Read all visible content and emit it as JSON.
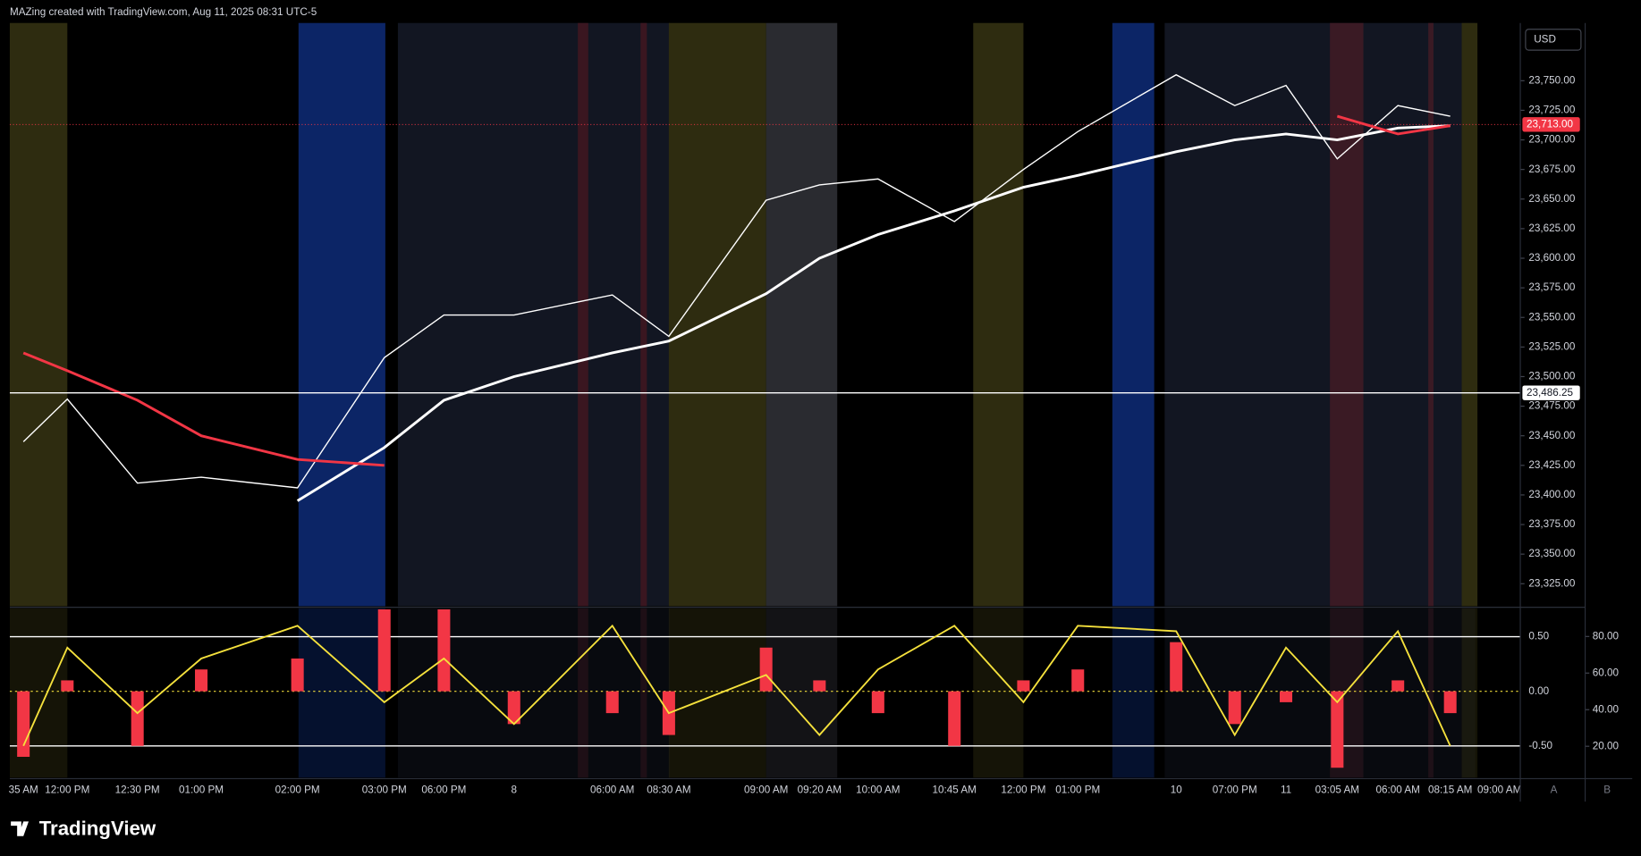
{
  "header": {
    "title": "MAZing created with TradingView.com, Aug 11, 2025 08:31 UTC-5",
    "currency": "USD"
  },
  "footer": {
    "brand": "TradingView",
    "scale_buttons": [
      "A",
      "B"
    ]
  },
  "chart_data": [
    {
      "type": "line",
      "categories": [
        "35 AM",
        "12:00 PM",
        "12:30 PM",
        "01:00 PM",
        "02:00 PM",
        "03:00 PM",
        "06:00 PM",
        "8",
        "06:00 AM",
        "08:30 AM",
        "09:00 AM",
        "09:20 AM",
        "10:00 AM",
        "10:45 AM",
        "12:00 PM",
        "01:00 PM",
        "10",
        "07:00 PM",
        "11",
        "03:05 AM",
        "06:00 AM",
        "08:15 AM",
        "09:00 AM"
      ],
      "series": [
        {
          "color": "#ffffff",
          "values": [
            23445,
            23481,
            23410,
            23415,
            23406,
            23516,
            23552,
            23552,
            23569,
            23534,
            23649,
            23662,
            23667,
            23631,
            23675,
            23707,
            23755,
            23729,
            23746,
            23684,
            23729,
            23720,
            null
          ]
        },
        {
          "color": "#ffffff",
          "values": [
            null,
            null,
            null,
            null,
            23395,
            23440,
            23480,
            23500,
            23520,
            23530,
            23570,
            23600,
            23620,
            23640,
            23660,
            23670,
            23690,
            23700,
            23705,
            23700,
            23710,
            23712,
            null
          ]
        },
        {
          "color": "#f23645",
          "values": [
            23520,
            23505,
            23480,
            23450,
            23430,
            23425,
            null,
            null,
            null,
            null,
            null,
            null,
            null,
            null,
            null,
            null,
            null,
            null,
            null,
            23720,
            23705,
            23712,
            null
          ]
        }
      ],
      "ylim": [
        23306,
        23797
      ],
      "yticks": [
        {
          "value": 23325,
          "label": "23,325.00"
        },
        {
          "value": 23350,
          "label": "23,350.00"
        },
        {
          "value": 23375,
          "label": "23,375.00"
        },
        {
          "value": 23400,
          "label": "23,400.00"
        },
        {
          "value": 23425,
          "label": "23,425.00"
        },
        {
          "value": 23450,
          "label": "23,450.00"
        },
        {
          "value": 23475,
          "label": "23,475.00"
        },
        {
          "value": 23500,
          "label": "23,500.00"
        },
        {
          "value": 23525,
          "label": "23,525.00"
        },
        {
          "value": 23550,
          "label": "23,550.00"
        },
        {
          "value": 23575,
          "label": "23,575.00"
        },
        {
          "value": 23600,
          "label": "23,600.00"
        },
        {
          "value": 23625,
          "label": "23,625.00"
        },
        {
          "value": 23650,
          "label": "23,650.00"
        },
        {
          "value": 23675,
          "label": "23,675.00"
        },
        {
          "value": 23700,
          "label": "23,700.00"
        },
        {
          "value": 23725,
          "label": "23,725.00"
        },
        {
          "value": 23750,
          "label": "23,750.00"
        }
      ],
      "price_lines": [
        {
          "value": 23713,
          "label": "23,713.00",
          "color": "#f23645"
        },
        {
          "value": 23486.25,
          "label": "23,486.25",
          "color": "#ffffff"
        }
      ]
    },
    {
      "type": "oscillator",
      "series": [
        {
          "color": "#f23645",
          "type": "bar",
          "values": [
            -0.6,
            0.1,
            -0.5,
            0.2,
            0.3,
            0.75,
            0.75,
            -0.3,
            -0.2,
            -0.4,
            0.4,
            0.1,
            -0.2,
            -0.5,
            0.1,
            0.2,
            0.45,
            -0.3,
            -0.1,
            -0.7,
            0.1,
            -0.2,
            null
          ]
        },
        {
          "color": "#f5e13c",
          "type": "line",
          "values": [
            -0.5,
            0.4,
            -0.2,
            0.3,
            0.6,
            -0.1,
            0.3,
            -0.3,
            0.6,
            -0.2,
            0.15,
            -0.4,
            0.2,
            0.6,
            -0.1,
            0.6,
            0.55,
            -0.4,
            0.4,
            -0.1,
            0.55,
            -0.5,
            null
          ]
        }
      ],
      "ylim": [
        -0.8,
        0.76
      ],
      "yticks": [
        {
          "value": -0.5,
          "label": "-0.50"
        },
        {
          "value": 0,
          "label": "0.00"
        },
        {
          "value": 0.5,
          "label": "0.50"
        }
      ],
      "y2lim": [
        2.3,
        95.4
      ],
      "y2ticks": [
        {
          "value": 20,
          "label": "20.00"
        },
        {
          "value": 40,
          "label": "40.00"
        },
        {
          "value": 60,
          "label": "60.00"
        },
        {
          "value": 80,
          "label": "80.00"
        }
      ]
    }
  ]
}
